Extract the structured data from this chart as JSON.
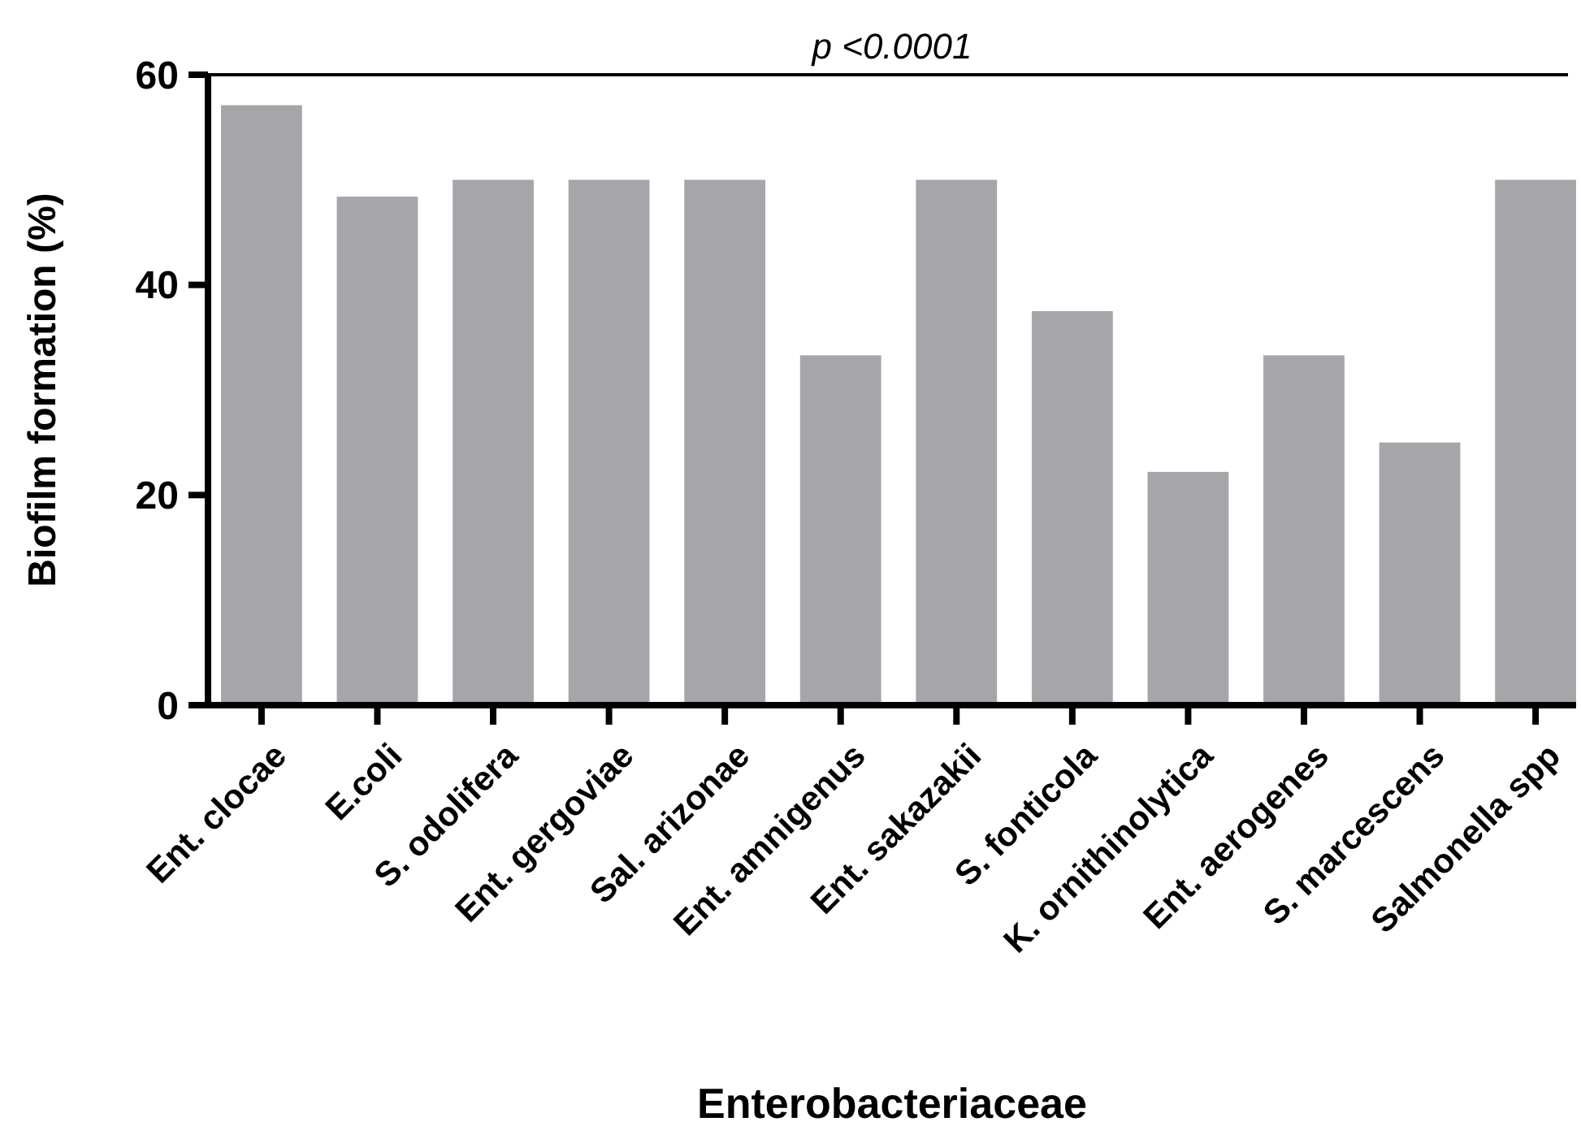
{
  "chart_data": {
    "type": "bar",
    "xlabel": "Enterobacteriaceae",
    "ylabel": "Biofilm formation (%)",
    "categories": [
      "Ent. clocae",
      "E.coli",
      "S. odolifera",
      "Ent. gergoviae",
      "Sal. arizonae",
      "Ent. amnigenus",
      "Ent. sakazakii",
      "S. fonticola",
      "K. ornithinolytica",
      "Ent. aerogenes",
      "S. marcescens",
      "Salmonella spp"
    ],
    "values": [
      57.1,
      48.4,
      50,
      50,
      50,
      33.3,
      50,
      37.5,
      22.2,
      33.3,
      25,
      50
    ],
    "color": "#a6a5aa",
    "ylim": [
      0,
      60
    ],
    "yticks": [
      0,
      20,
      40,
      60
    ],
    "grid": false,
    "ref_lines": [
      {
        "axis": "y",
        "value": 60,
        "label": "p <0.0001",
        "color": "#000000"
      }
    ]
  }
}
